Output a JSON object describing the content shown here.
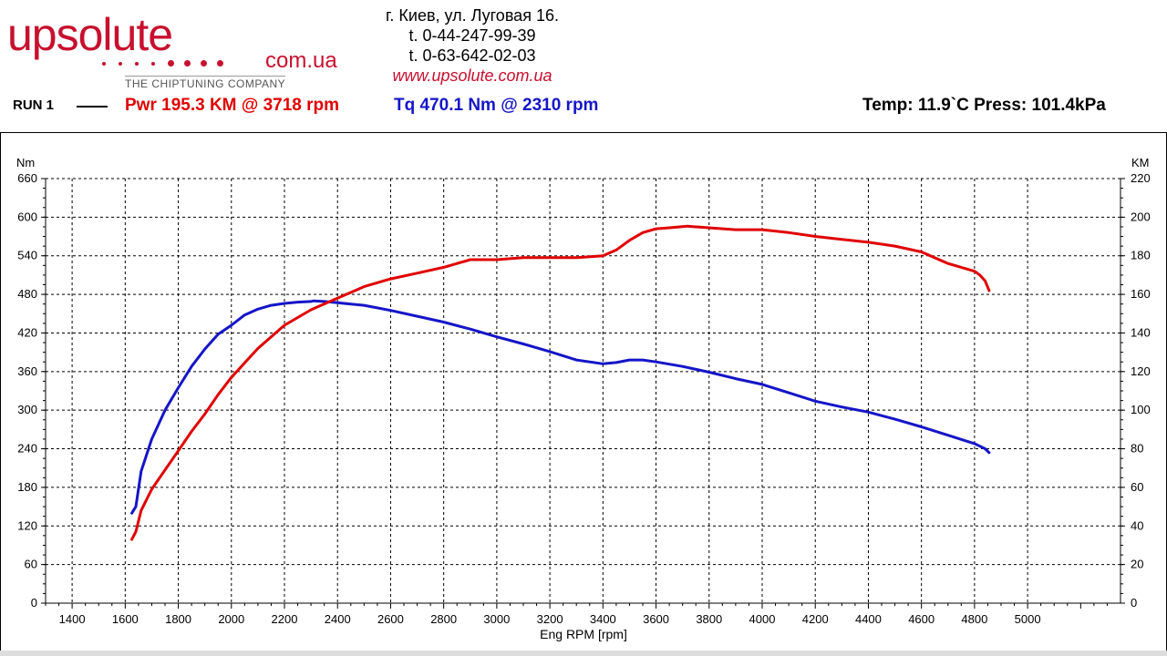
{
  "header": {
    "logo_text": "upsolute",
    "logo_domain": "com.ua",
    "logo_tagline": "THE CHIPTUNING COMPANY",
    "address": "г. Киев, ул. Луговая 16.",
    "phone1": "t. 0-44-247-99-39",
    "phone2": "t. 0-63-642-02-03",
    "website": "www.upsolute.com.ua",
    "run_label": "RUN 1",
    "power_summary": "Pwr  195.3 KM @ 3718 rpm",
    "torque_summary": "Tq 470.1 Nm @ 2310 rpm",
    "environment": "Temp: 11.9`C    Press: 101.4kPa"
  },
  "colors": {
    "power": "#e00000",
    "torque": "#1515c8",
    "brand": "#c8102e"
  },
  "chart_data": {
    "type": "line",
    "xlabel": "Eng RPM [rpm]",
    "ylabel_left": "Nm",
    "ylabel_right": "KM",
    "xlim": [
      1300,
      5350
    ],
    "ylim_left": [
      0,
      660
    ],
    "ylim_right": [
      0,
      220
    ],
    "grid": true,
    "x_ticks": [
      1400,
      1600,
      1800,
      2000,
      2200,
      2400,
      2600,
      2800,
      3000,
      3200,
      3400,
      3600,
      3800,
      4000,
      4200,
      4400,
      4600,
      4800,
      5000
    ],
    "y_left_ticks": [
      0,
      60,
      120,
      180,
      240,
      300,
      360,
      420,
      480,
      540,
      600,
      660
    ],
    "y_right_ticks": [
      0,
      20,
      40,
      60,
      80,
      100,
      120,
      140,
      160,
      180,
      200,
      220
    ],
    "series": [
      {
        "name": "Tq",
        "axis": "left",
        "unit": "Nm",
        "color": "#1515c8",
        "x": [
          1625,
          1640,
          1660,
          1700,
          1750,
          1800,
          1850,
          1900,
          1950,
          2000,
          2050,
          2100,
          2150,
          2200,
          2250,
          2300,
          2310,
          2350,
          2400,
          2500,
          2600,
          2700,
          2800,
          2900,
          3000,
          3100,
          3200,
          3300,
          3400,
          3450,
          3500,
          3550,
          3600,
          3700,
          3800,
          3900,
          4000,
          4100,
          4200,
          4300,
          4400,
          4500,
          4600,
          4700,
          4800,
          4820,
          4840,
          4855
        ],
        "y": [
          140,
          150,
          205,
          255,
          300,
          335,
          368,
          395,
          418,
          432,
          448,
          457,
          463,
          466,
          468,
          469,
          470,
          469,
          467,
          463,
          455,
          446,
          437,
          426,
          414,
          403,
          391,
          378,
          372,
          374,
          378,
          378,
          375,
          368,
          359,
          349,
          340,
          327,
          314,
          305,
          297,
          286,
          274,
          261,
          248,
          244,
          240,
          234
        ]
      },
      {
        "name": "Pwr",
        "axis": "right",
        "unit": "KM",
        "color": "#e00000",
        "x": [
          1625,
          1640,
          1660,
          1700,
          1750,
          1800,
          1850,
          1900,
          1950,
          2000,
          2100,
          2200,
          2300,
          2400,
          2500,
          2600,
          2700,
          2800,
          2900,
          3000,
          3100,
          3200,
          3300,
          3400,
          3450,
          3500,
          3550,
          3600,
          3650,
          3718,
          3800,
          3900,
          4000,
          4100,
          4200,
          4300,
          4400,
          4500,
          4600,
          4700,
          4750,
          4800,
          4820,
          4840,
          4855
        ],
        "y": [
          33,
          37,
          48,
          59,
          69,
          79,
          89,
          98,
          108,
          117,
          132,
          144,
          152,
          158,
          164,
          168,
          171,
          174,
          178,
          178,
          179,
          179,
          179,
          180,
          183,
          188,
          192,
          194,
          194.5,
          195.3,
          194.5,
          193.5,
          193.5,
          192,
          190,
          188.5,
          187,
          185,
          182,
          176,
          174,
          172,
          170,
          167,
          162
        ]
      }
    ]
  }
}
